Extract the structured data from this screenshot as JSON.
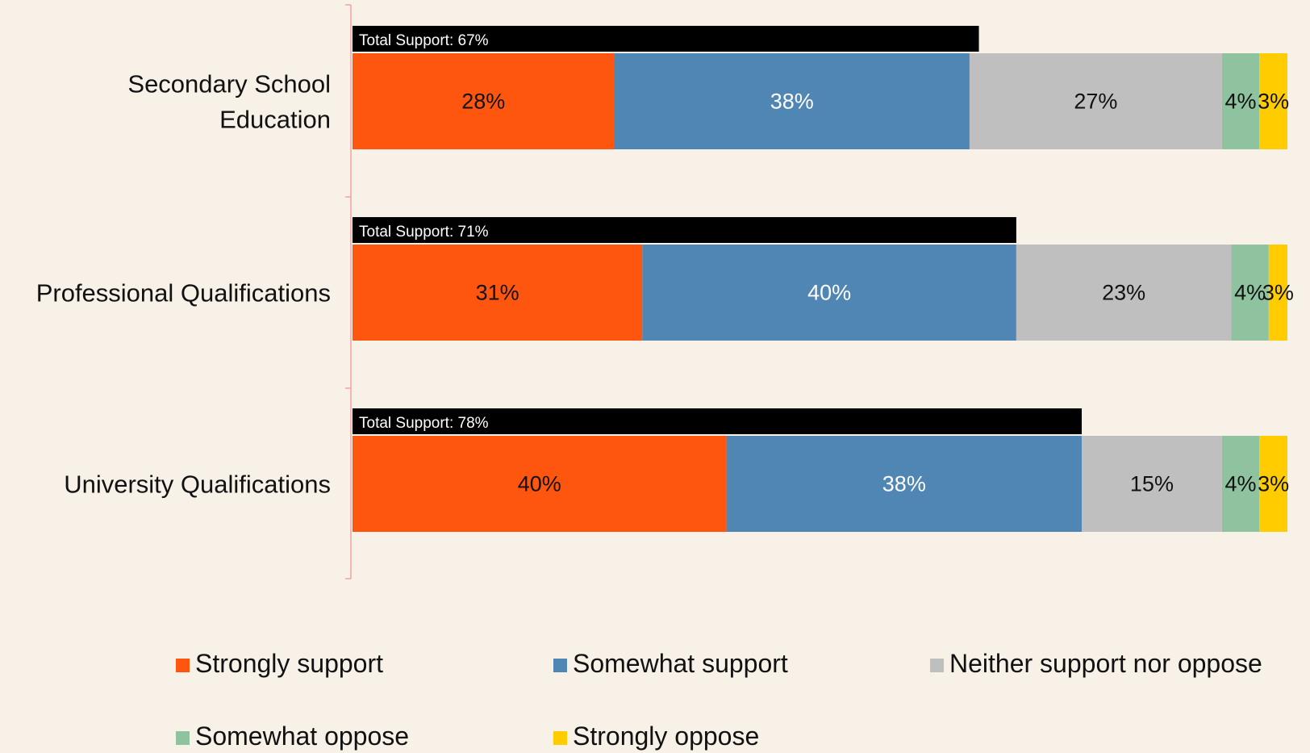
{
  "chart_data": {
    "type": "bar",
    "orientation": "horizontal",
    "stacked": true,
    "xlim": [
      0,
      100
    ],
    "grid": false,
    "legend_position": "bottom",
    "categories": [
      [
        "Secondary School",
        "Education"
      ],
      [
        "Professional Qualifications"
      ],
      [
        "University Qualifications"
      ]
    ],
    "totals": [
      {
        "label": "Total Support: 67%",
        "value": 67
      },
      {
        "label": "Total Support: 71%",
        "value": 71
      },
      {
        "label": "Total Support: 78%",
        "value": 78
      }
    ],
    "series": [
      {
        "name": "Strongly support",
        "color": "#ff560f",
        "label_color": "#111111",
        "values": [
          28,
          31,
          40
        ],
        "labels": [
          "28%",
          "31%",
          "40%"
        ]
      },
      {
        "name": "Somewhat support",
        "color": "#4f86b4",
        "label_color": "#ffffff",
        "values": [
          38,
          40,
          38
        ],
        "labels": [
          "38%",
          "40%",
          "38%"
        ]
      },
      {
        "name": "Neither support nor oppose",
        "color": "#bfbfbf",
        "label_color": "#111111",
        "values": [
          27,
          23,
          15
        ],
        "labels": [
          "27%",
          "23%",
          "15%"
        ]
      },
      {
        "name": "Somewhat oppose",
        "color": "#8fc3a0",
        "label_color": "#111111",
        "values": [
          4,
          4,
          4
        ],
        "labels": [
          "4%",
          "4%",
          "4%"
        ]
      },
      {
        "name": "Strongly oppose",
        "color": "#ffcc00",
        "label_color": "#111111",
        "values": [
          3,
          3,
          3
        ],
        "labels": [
          "3%",
          "3%",
          "3%"
        ]
      }
    ],
    "colors": {
      "background": "#f8f1e7",
      "axis": "#f2a3a3",
      "total_bar": "#000000"
    }
  }
}
